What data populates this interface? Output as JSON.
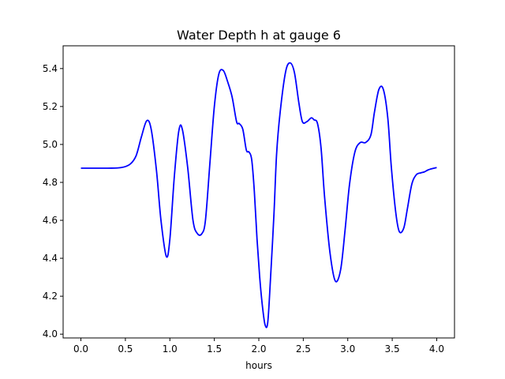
{
  "chart_data": {
    "type": "line",
    "title": "Water Depth h at gauge 6",
    "xlabel": "hours",
    "ylabel": "",
    "xlim": [
      -0.2,
      4.2
    ],
    "ylim": [
      3.98,
      5.52
    ],
    "xticks": [
      0.0,
      0.5,
      1.0,
      1.5,
      2.0,
      2.5,
      3.0,
      3.5,
      4.0
    ],
    "xtick_labels": [
      "0.0",
      "0.5",
      "1.0",
      "1.5",
      "2.0",
      "2.5",
      "3.0",
      "3.5",
      "4.0"
    ],
    "yticks": [
      4.0,
      4.2,
      4.4,
      4.6,
      4.8,
      5.0,
      5.2,
      5.4
    ],
    "ytick_labels": [
      "4.0",
      "4.2",
      "4.4",
      "4.6",
      "4.8",
      "5.0",
      "5.2",
      "5.4"
    ],
    "grid": false,
    "series": [
      {
        "color": "#0000ff",
        "x": [
          0.0,
          0.3,
          0.45,
          0.55,
          0.62,
          0.68,
          0.74,
          0.79,
          0.85,
          0.9,
          0.96,
          1.0,
          1.05,
          1.1,
          1.14,
          1.2,
          1.26,
          1.31,
          1.36,
          1.4,
          1.45,
          1.5,
          1.55,
          1.6,
          1.65,
          1.7,
          1.75,
          1.78,
          1.82,
          1.86,
          1.89,
          1.92,
          1.95,
          1.98,
          2.01,
          2.04,
          2.07,
          2.1,
          2.13,
          2.17,
          2.2,
          2.24,
          2.3,
          2.35,
          2.4,
          2.45,
          2.49,
          2.54,
          2.59,
          2.62,
          2.66,
          2.7,
          2.74,
          2.8,
          2.86,
          2.92,
          2.97,
          3.02,
          3.08,
          3.14,
          3.2,
          3.26,
          3.3,
          3.35,
          3.4,
          3.45,
          3.49,
          3.54,
          3.58,
          3.63,
          3.67,
          3.72,
          3.77,
          3.82,
          3.86,
          3.9,
          3.93,
          3.97,
          4.0
        ],
        "y": [
          4.875,
          4.875,
          4.878,
          4.895,
          4.94,
          5.04,
          5.125,
          5.08,
          4.86,
          4.6,
          4.41,
          4.5,
          4.83,
          5.07,
          5.08,
          4.88,
          4.6,
          4.53,
          4.53,
          4.6,
          4.9,
          5.2,
          5.37,
          5.39,
          5.33,
          5.25,
          5.12,
          5.11,
          5.08,
          4.97,
          4.96,
          4.92,
          4.75,
          4.5,
          4.3,
          4.15,
          4.05,
          4.06,
          4.28,
          4.63,
          4.95,
          5.17,
          5.38,
          5.43,
          5.38,
          5.22,
          5.12,
          5.12,
          5.14,
          5.13,
          5.11,
          4.98,
          4.72,
          4.43,
          4.28,
          4.34,
          4.55,
          4.79,
          4.96,
          5.01,
          5.01,
          5.05,
          5.17,
          5.29,
          5.29,
          5.14,
          4.88,
          4.64,
          4.54,
          4.56,
          4.66,
          4.79,
          4.84,
          4.85,
          4.855,
          4.865,
          4.87,
          4.875,
          4.878
        ]
      }
    ]
  }
}
